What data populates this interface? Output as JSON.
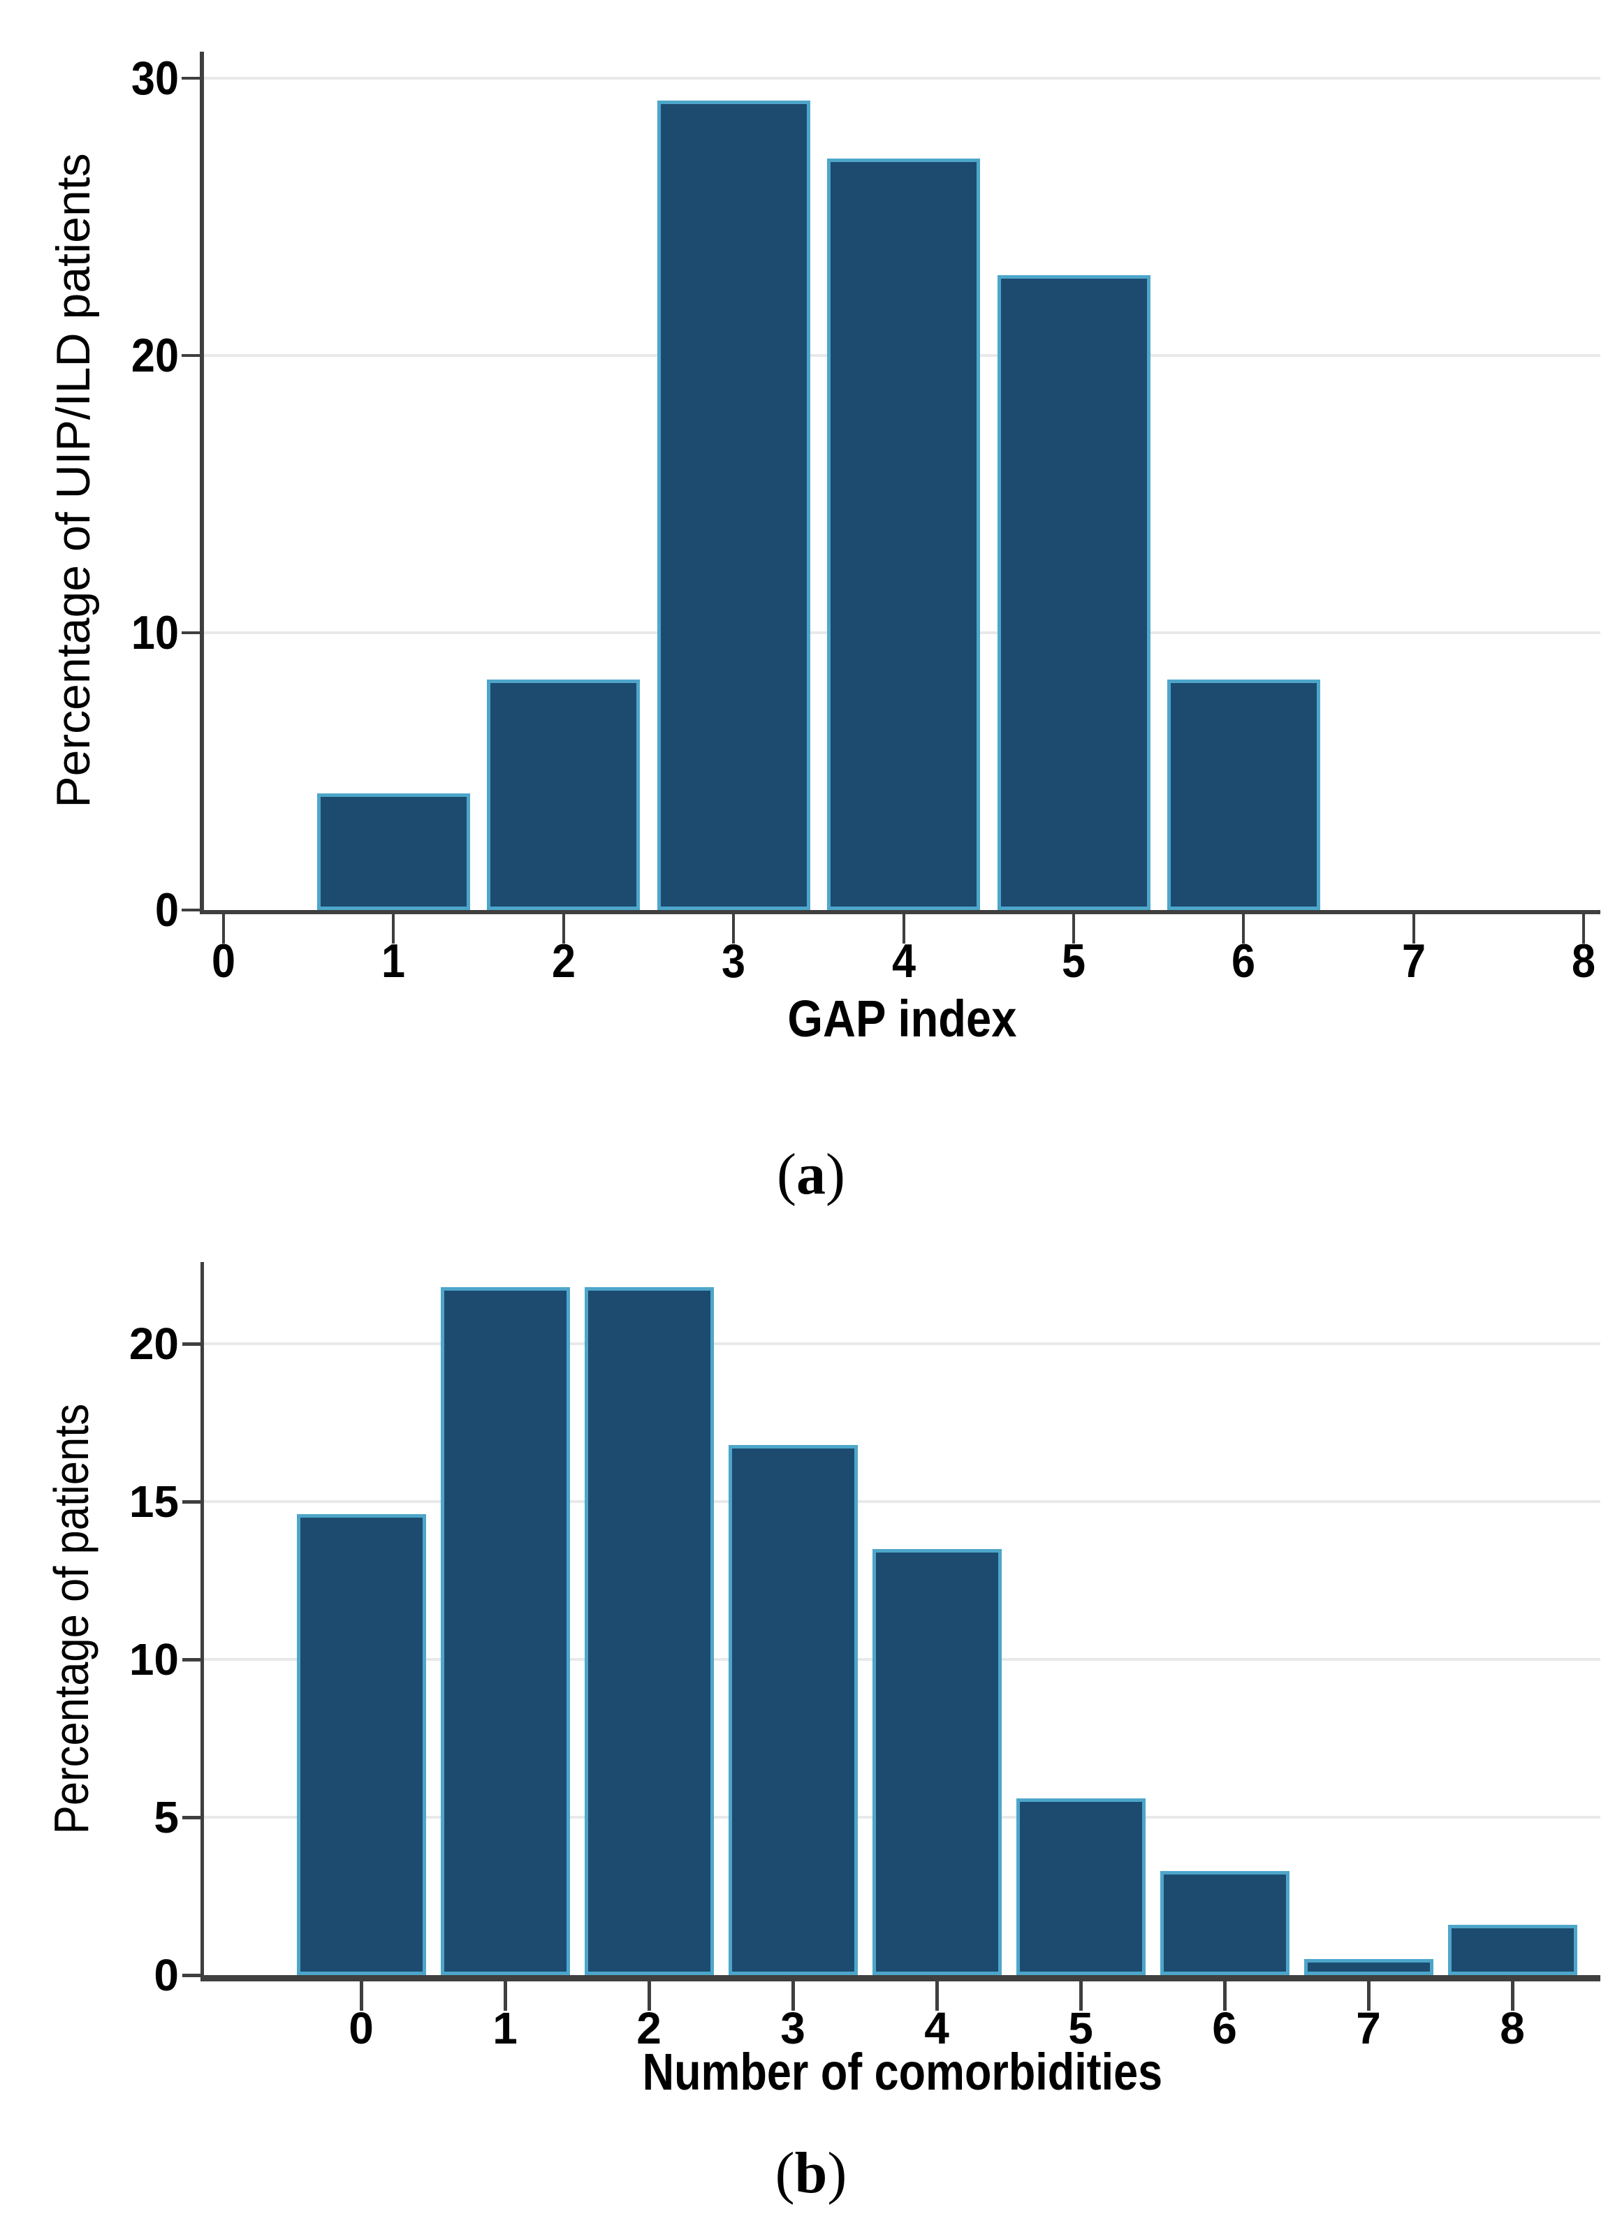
{
  "figure": {
    "panels": [
      {
        "caption": {
          "open": "(",
          "letter": "a",
          "close": ")"
        },
        "ylabel": "Percentage of UIP/ILD patients",
        "xlabel": "GAP index"
      },
      {
        "caption": {
          "open": "(",
          "letter": "b",
          "close": ")"
        },
        "ylabel": "Percentage of patients",
        "xlabel": "Number of comorbidities"
      }
    ],
    "colors": {
      "background": "#ffffff",
      "bar_fill": "#1d4b70",
      "bar_border": "#4da6ca",
      "gridline": "#e9e9e9",
      "axis": "#3f3f3f",
      "text": "#000000"
    }
  },
  "chart_data": [
    {
      "type": "bar",
      "panel": "a",
      "title": "",
      "xlabel": "GAP index",
      "ylabel": "Percentage of UIP/ILD patients",
      "categories": [
        1,
        2,
        3,
        4,
        5,
        6
      ],
      "values": [
        4.2,
        8.3,
        29.2,
        27.1,
        22.9,
        8.3
      ],
      "xticks": [
        0,
        1,
        2,
        3,
        4,
        5,
        6,
        7,
        8
      ],
      "yticks": [
        0,
        10,
        20,
        30
      ],
      "xlim": [
        -0.12,
        8.1
      ],
      "ylim": [
        0,
        31
      ],
      "bar_width": 0.9,
      "grid": "horizontal-light",
      "legend": "none"
    },
    {
      "type": "bar",
      "panel": "b",
      "title": "",
      "xlabel": "Number of comorbidities",
      "ylabel": "Percentage of patients",
      "categories": [
        0,
        1,
        2,
        3,
        4,
        5,
        6,
        7,
        8
      ],
      "values": [
        14.6,
        21.8,
        21.8,
        16.8,
        13.5,
        5.6,
        3.3,
        0.5,
        1.6
      ],
      "xticks": [
        0,
        1,
        2,
        3,
        4,
        5,
        6,
        7,
        8
      ],
      "yticks": [
        0,
        5,
        10,
        15,
        20
      ],
      "xlim": [
        -1.09,
        8.61
      ],
      "ylim": [
        0,
        22.6
      ],
      "bar_width": 0.9,
      "grid": "horizontal-light",
      "legend": "none"
    }
  ]
}
